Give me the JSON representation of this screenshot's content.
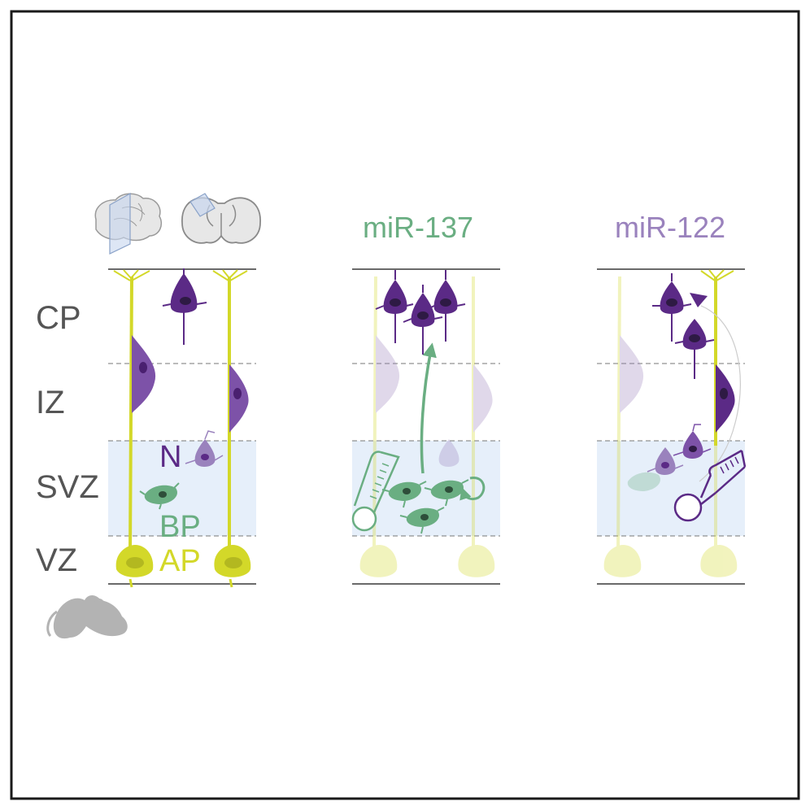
{
  "colors": {
    "frame": "#1a1a1a",
    "layer_line": "#555555",
    "svz_band": "#e6effa",
    "radial_glia": "#d3d829",
    "neuron": "#5b2a86",
    "neuron_light": "#9a82bd",
    "basal_progenitor": "#6aae82",
    "label_gray": "#555555",
    "mouse": "#b3b3b3",
    "brain": "#e7e7e7"
  },
  "layer_labels": {
    "cp": "CP",
    "iz": "IZ",
    "svz": "SVZ",
    "vz": "VZ"
  },
  "cell_labels": {
    "neuron": "N",
    "basal_progenitor": "BP",
    "apical_progenitor": "AP"
  },
  "panels": {
    "control": {
      "icons": [
        "brain-side-icon",
        "brain-coronal-icon",
        "mouse-icon"
      ]
    },
    "mir137": {
      "title": "miR-137"
    },
    "mir122": {
      "title": "miR-122"
    }
  }
}
